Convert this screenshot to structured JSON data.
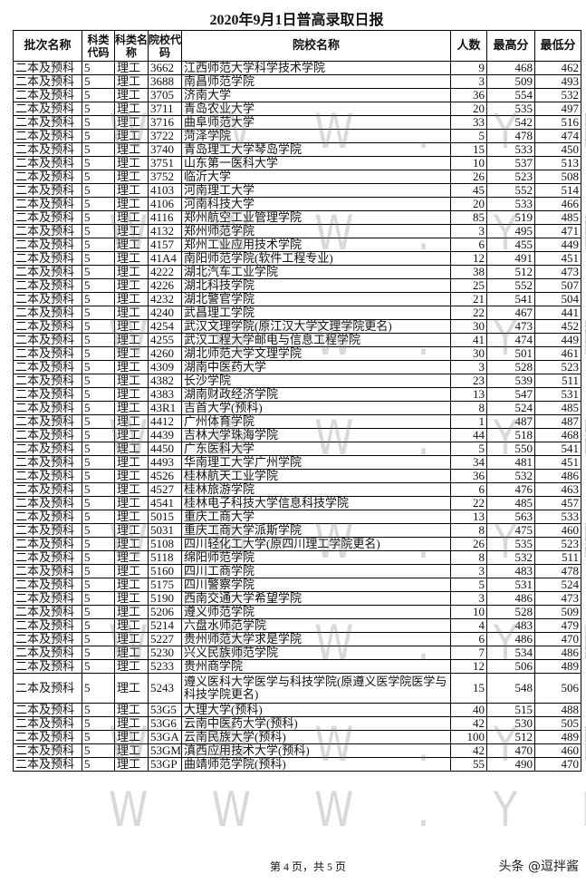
{
  "title": "2020年9月1日普高录取日报",
  "headers": [
    "批次名称",
    "科类代码",
    "科类名称",
    "院校代码",
    "院校名称",
    "人数",
    "最高分",
    "最低分"
  ],
  "rows": [
    [
      "二本及预科",
      "5",
      "理工",
      "3662",
      "江西师范大学科学技术学院",
      "9",
      "468",
      "462"
    ],
    [
      "二本及预科",
      "5",
      "理工",
      "3688",
      "南昌师范学院",
      "3",
      "509",
      "493"
    ],
    [
      "二本及预科",
      "5",
      "理工",
      "3705",
      "济南大学",
      "36",
      "554",
      "532"
    ],
    [
      "二本及预科",
      "5",
      "理工",
      "3711",
      "青岛农业大学",
      "20",
      "535",
      "497"
    ],
    [
      "二本及预科",
      "5",
      "理工",
      "3716",
      "曲阜师范大学",
      "33",
      "542",
      "516"
    ],
    [
      "二本及预科",
      "5",
      "理工",
      "3722",
      "菏泽学院",
      "5",
      "478",
      "474"
    ],
    [
      "二本及预科",
      "5",
      "理工",
      "3740",
      "青岛理工大学琴岛学院",
      "15",
      "533",
      "450"
    ],
    [
      "二本及预科",
      "5",
      "理工",
      "3751",
      "山东第一医科大学",
      "10",
      "537",
      "513"
    ],
    [
      "二本及预科",
      "5",
      "理工",
      "3752",
      "临沂大学",
      "26",
      "523",
      "508"
    ],
    [
      "二本及预科",
      "5",
      "理工",
      "4103",
      "河南理工大学",
      "45",
      "552",
      "514"
    ],
    [
      "二本及预科",
      "5",
      "理工",
      "4106",
      "河南科技大学",
      "20",
      "533",
      "466"
    ],
    [
      "二本及预科",
      "5",
      "理工",
      "4116",
      "郑州航空工业管理学院",
      "85",
      "519",
      "485"
    ],
    [
      "二本及预科",
      "5",
      "理工",
      "4132",
      "郑州师范学院",
      "3",
      "495",
      "471"
    ],
    [
      "二本及预科",
      "5",
      "理工",
      "4157",
      "郑州工业应用技术学院",
      "6",
      "455",
      "449"
    ],
    [
      "二本及预科",
      "5",
      "理工",
      "41A4",
      "南阳师范学院(软件工程专业)",
      "12",
      "491",
      "451"
    ],
    [
      "二本及预科",
      "5",
      "理工",
      "4222",
      "湖北汽车工业学院",
      "38",
      "512",
      "473"
    ],
    [
      "二本及预科",
      "5",
      "理工",
      "4226",
      "湖北科技学院",
      "25",
      "552",
      "507"
    ],
    [
      "二本及预科",
      "5",
      "理工",
      "4232",
      "湖北警官学院",
      "21",
      "541",
      "504"
    ],
    [
      "二本及预科",
      "5",
      "理工",
      "4240",
      "武昌理工学院",
      "22",
      "467",
      "441"
    ],
    [
      "二本及预科",
      "5",
      "理工",
      "4254",
      "武汉文理学院(原江汉大学文理学院更名)",
      "30",
      "473",
      "452"
    ],
    [
      "二本及预科",
      "5",
      "理工",
      "4255",
      "武汉工程大学邮电与信息工程学院",
      "41",
      "474",
      "449"
    ],
    [
      "二本及预科",
      "5",
      "理工",
      "4260",
      "湖北师范大学文理学院",
      "30",
      "501",
      "461"
    ],
    [
      "二本及预科",
      "5",
      "理工",
      "4309",
      "湖南中医药大学",
      "3",
      "528",
      "523"
    ],
    [
      "二本及预科",
      "5",
      "理工",
      "4382",
      "长沙学院",
      "23",
      "539",
      "511"
    ],
    [
      "二本及预科",
      "5",
      "理工",
      "4383",
      "湖南财政经济学院",
      "13",
      "547",
      "531"
    ],
    [
      "二本及预科",
      "5",
      "理工",
      "43R1",
      "吉首大学(预科)",
      "8",
      "524",
      "485"
    ],
    [
      "二本及预科",
      "5",
      "理工",
      "4412",
      "广州体育学院",
      "1",
      "487",
      "487"
    ],
    [
      "二本及预科",
      "5",
      "理工",
      "4439",
      "吉林大学珠海学院",
      "44",
      "518",
      "468"
    ],
    [
      "二本及预科",
      "5",
      "理工",
      "4450",
      "广东医科大学",
      "5",
      "550",
      "541"
    ],
    [
      "二本及预科",
      "5",
      "理工",
      "4493",
      "华南理工大学广州学院",
      "34",
      "481",
      "451"
    ],
    [
      "二本及预科",
      "5",
      "理工",
      "4526",
      "桂林航天工业学院",
      "36",
      "532",
      "486"
    ],
    [
      "二本及预科",
      "5",
      "理工",
      "4527",
      "桂林旅游学院",
      "6",
      "476",
      "463"
    ],
    [
      "二本及预科",
      "5",
      "理工",
      "4541",
      "桂林电子科技大学信息科技学院",
      "22",
      "485",
      "457"
    ],
    [
      "二本及预科",
      "5",
      "理工",
      "5015",
      "重庆工商大学",
      "13",
      "563",
      "533"
    ],
    [
      "二本及预科",
      "5",
      "理工",
      "5031",
      "重庆工商大学派斯学院",
      "8",
      "475",
      "460"
    ],
    [
      "二本及预科",
      "5",
      "理工",
      "5108",
      "四川轻化工大学(原四川理工学院更名)",
      "26",
      "535",
      "523"
    ],
    [
      "二本及预科",
      "5",
      "理工",
      "5118",
      "绵阳师范学院",
      "8",
      "532",
      "511"
    ],
    [
      "二本及预科",
      "5",
      "理工",
      "5160",
      "四川工商学院",
      "3",
      "483",
      "478"
    ],
    [
      "二本及预科",
      "5",
      "理工",
      "5175",
      "四川警察学院",
      "5",
      "531",
      "524"
    ],
    [
      "二本及预科",
      "5",
      "理工",
      "5190",
      "西南交通大学希望学院",
      "3",
      "486",
      "473"
    ],
    [
      "二本及预科",
      "5",
      "理工",
      "5206",
      "遵义师范学院",
      "10",
      "528",
      "509"
    ],
    [
      "二本及预科",
      "5",
      "理工",
      "5214",
      "六盘水师范学院",
      "4",
      "483",
      "479"
    ],
    [
      "二本及预科",
      "5",
      "理工",
      "5227",
      "贵州师范大学求是学院",
      "6",
      "486",
      "470"
    ],
    [
      "二本及预科",
      "5",
      "理工",
      "5230",
      "兴义民族师范学院",
      "7",
      "534",
      "486"
    ],
    [
      "二本及预科",
      "5",
      "理工",
      "5233",
      "贵州商学院",
      "12",
      "506",
      "489"
    ],
    [
      "二本及预科",
      "5",
      "理工",
      "5243",
      "遵义医科大学医学与科技学院(原遵义医学院医学与科技学院更名)",
      "15",
      "548",
      "506"
    ],
    [
      "二本及预科",
      "5",
      "理工",
      "53G5",
      "大理大学(预科)",
      "40",
      "515",
      "488"
    ],
    [
      "二本及预科",
      "5",
      "理工",
      "53G6",
      "云南中医药大学(预科)",
      "42",
      "530",
      "505"
    ],
    [
      "二本及预科",
      "5",
      "理工",
      "53GA",
      "云南民族大学(预科)",
      "100",
      "512",
      "489"
    ],
    [
      "二本及预科",
      "5",
      "理工",
      "53GM",
      "滇西应用技术大学(预科)",
      "42",
      "470",
      "460"
    ],
    [
      "二本及预科",
      "5",
      "理工",
      "53GP",
      "曲靖师范学院(预科)",
      "55",
      "490",
      "470"
    ]
  ],
  "footer": "第 4 页，共 5 页",
  "brand": "头条 @逗拌酱",
  "watermark": "WWW.YNZS.CN"
}
